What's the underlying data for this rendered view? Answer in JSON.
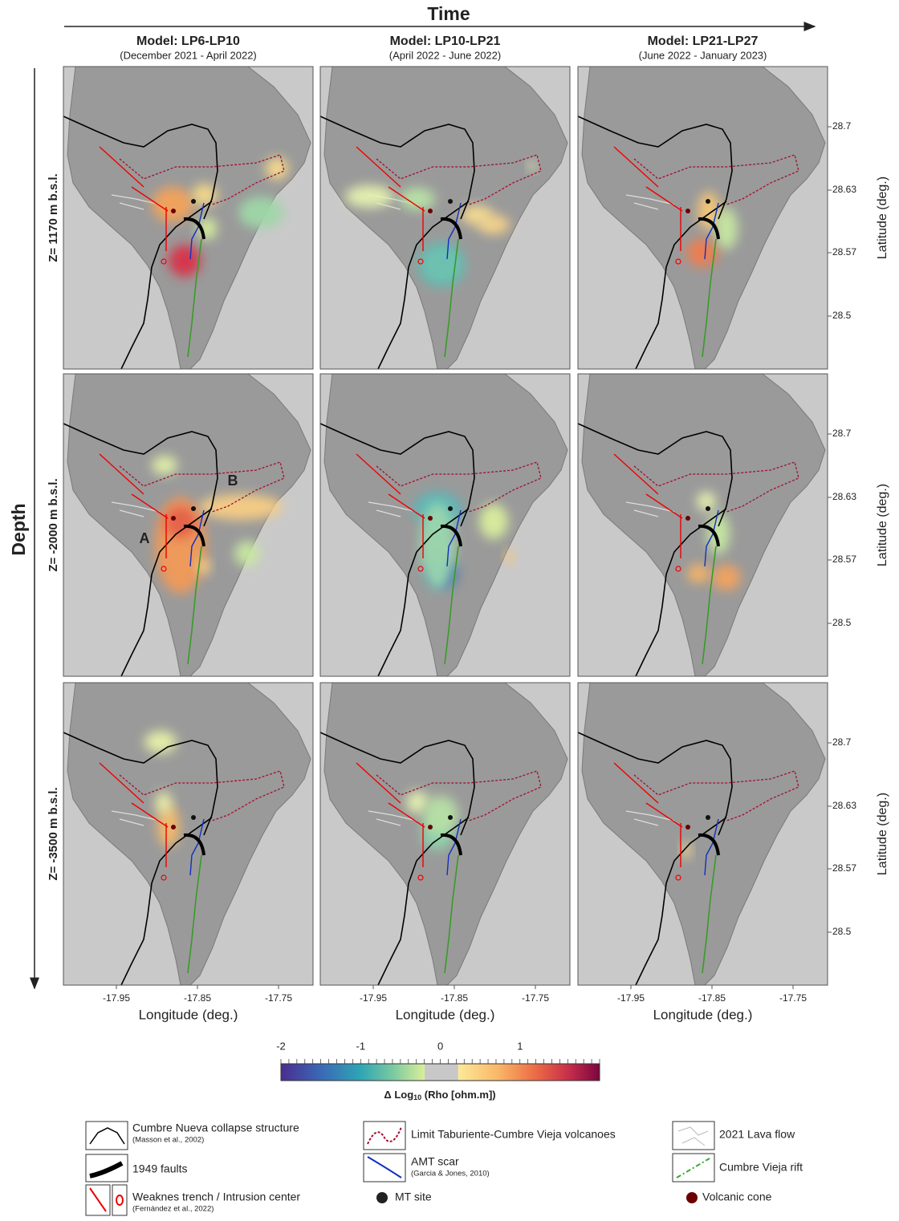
{
  "header": {
    "title": "Time",
    "side_label": "Depth"
  },
  "columns": [
    {
      "title": "Model: LP6-LP10",
      "subtitle": "(December 2021 - April 2022)"
    },
    {
      "title": "Model: LP10-LP21",
      "subtitle": "(April 2022 - June 2022)"
    },
    {
      "title": "Model: LP21-LP27",
      "subtitle": "(June 2022 - January 2023)"
    }
  ],
  "rows": [
    {
      "label": "Z= 1170 m b.s.l."
    },
    {
      "label": "Z= -2000 m b.s.l."
    },
    {
      "label": "Z= -3500 m b.s.l."
    }
  ],
  "axes": {
    "x_label": "Longitude (deg.)",
    "y_label": "Latitude (deg.)",
    "x_ticks": [
      "-17.95",
      "-17.85",
      "-17.75"
    ],
    "y_ticks": [
      "28.7",
      "28.63",
      "28.57",
      "28.5"
    ]
  },
  "annotations": [
    "A",
    "B"
  ],
  "colorbar": {
    "ticks": [
      "-2",
      "-1",
      "0",
      "1"
    ],
    "label": "Δ Log",
    "label_sub": "10",
    "label_end": " (Rho [ohm.m])"
  },
  "legend": [
    {
      "label": "Cumbre Nueva collapse structure",
      "source": "(Masson et al., 2002)"
    },
    {
      "label": "1949 faults"
    },
    {
      "label": "Weaknes trench / Intrusion center",
      "source": "(Fernández et al., 2022)"
    },
    {
      "label": "Limit Taburiente-Cumbre Vieja volcanoes"
    },
    {
      "label": "AMT scar",
      "source": "(Garcia & Jones, 2010)"
    },
    {
      "label": "MT site"
    },
    {
      "label": "2021 Lava flow"
    },
    {
      "label": "Cumbre Vieja rift"
    },
    {
      "label": "Volcanic cone"
    }
  ]
}
